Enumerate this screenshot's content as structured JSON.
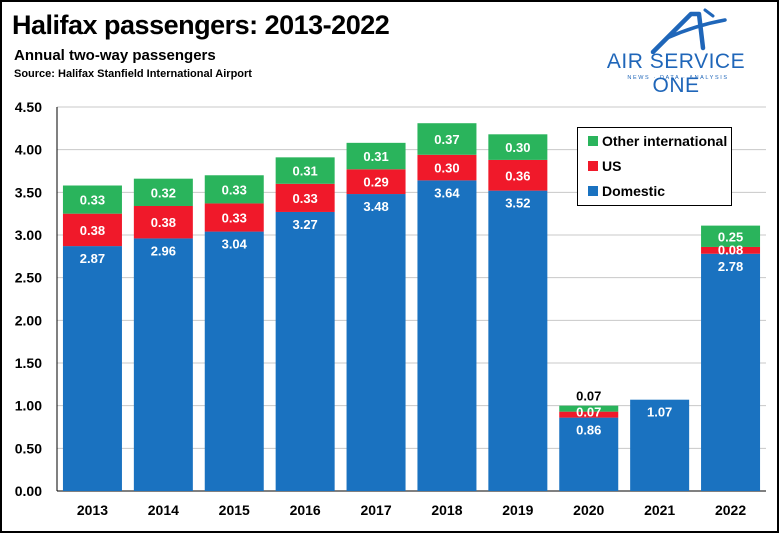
{
  "header": {
    "title": "Halifax passengers: 2013-2022",
    "subtitle": "Annual two-way passengers",
    "source": "Source: Halifax Stanfield International Airport"
  },
  "logo": {
    "name": "AIR SERVICE ONE",
    "tagline": "NEWS · DATA · ANALYSIS",
    "color": "#1f66b9"
  },
  "chart_data": {
    "type": "bar",
    "stacked": true,
    "title": "Halifax passengers: 2013-2022",
    "subtitle": "Annual two-way passengers",
    "xlabel": "",
    "ylabel": "",
    "categories": [
      "2013",
      "2014",
      "2015",
      "2016",
      "2017",
      "2018",
      "2019",
      "2020",
      "2021",
      "2022"
    ],
    "yticks": [
      "0.00",
      "0.50",
      "1.00",
      "1.50",
      "2.00",
      "2.50",
      "3.00",
      "3.50",
      "4.00",
      "4.50"
    ],
    "ylim": [
      0,
      4.5
    ],
    "grid": true,
    "legend_position": "top-right",
    "series": [
      {
        "name": "Domestic",
        "color": "#1a72c0",
        "values": [
          2.87,
          2.96,
          3.04,
          3.27,
          3.48,
          3.64,
          3.52,
          0.86,
          1.07,
          2.78
        ],
        "labels": [
          "2.87",
          "2.96",
          "3.04",
          "3.27",
          "3.48",
          "3.64",
          "3.52",
          "0.86",
          "1.07",
          "2.78"
        ]
      },
      {
        "name": "US",
        "color": "#f0192a",
        "values": [
          0.38,
          0.38,
          0.33,
          0.33,
          0.29,
          0.3,
          0.36,
          0.07,
          0.0,
          0.08
        ],
        "labels": [
          "0.38",
          "0.38",
          "0.33",
          "0.33",
          "0.29",
          "0.30",
          "0.36",
          "0.07",
          "",
          "0.08"
        ]
      },
      {
        "name": "Other international",
        "color": "#2ab45c",
        "values": [
          0.33,
          0.32,
          0.33,
          0.31,
          0.31,
          0.37,
          0.3,
          0.07,
          0.0,
          0.25
        ],
        "labels": [
          "0.33",
          "0.32",
          "0.33",
          "0.31",
          "0.31",
          "0.37",
          "0.30",
          "0.07",
          "",
          "0.25"
        ]
      }
    ]
  }
}
